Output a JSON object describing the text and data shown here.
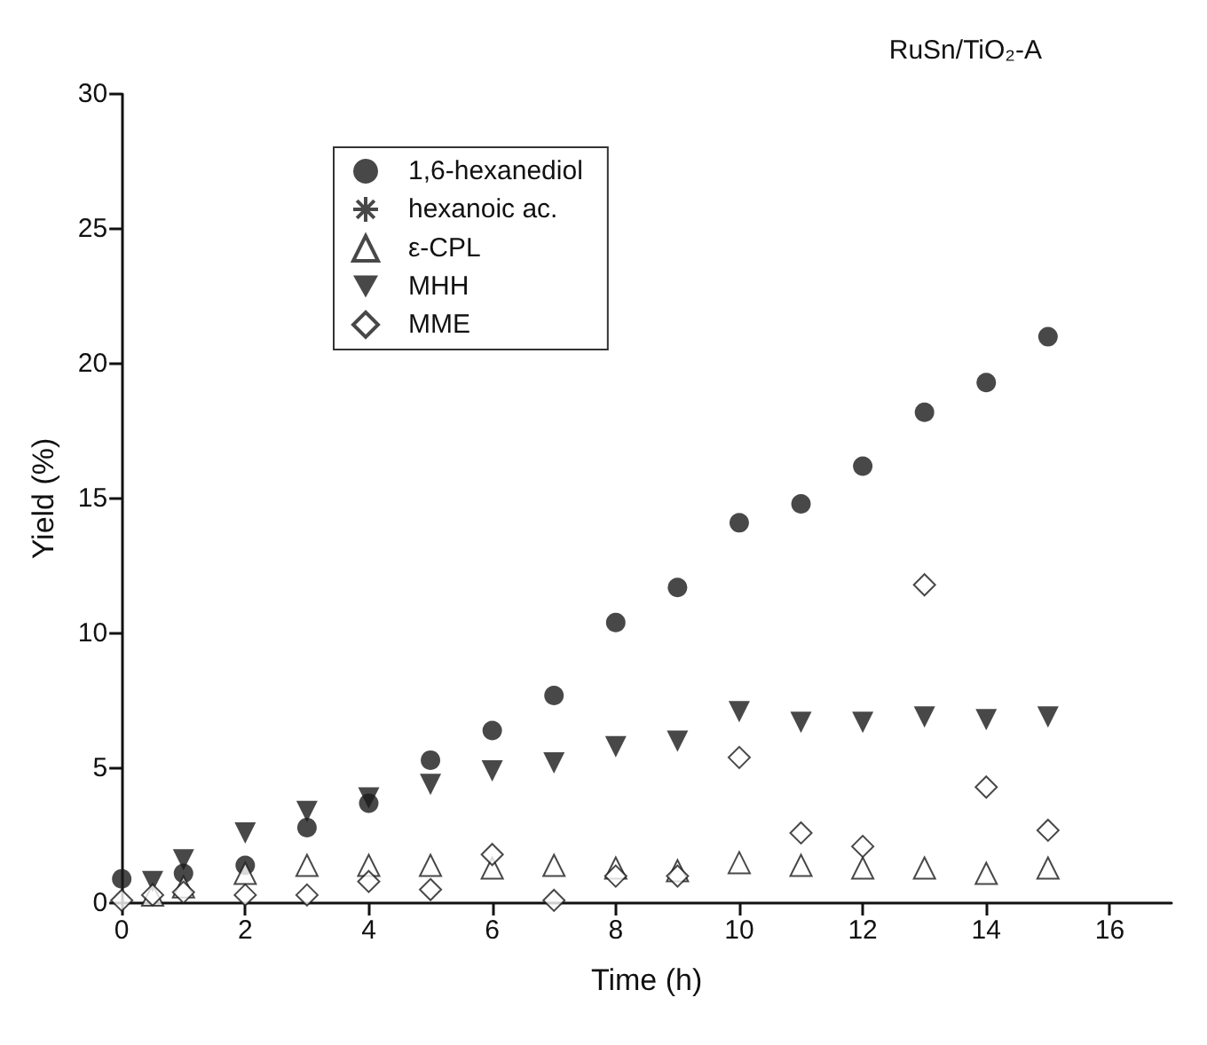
{
  "chart_data": {
    "type": "scatter",
    "title": "RuSn/TiO₂-A",
    "xlabel": "Time (h)",
    "ylabel": "Yield (%)",
    "x": [
      0,
      0.5,
      1,
      2,
      3,
      4,
      5,
      6,
      7,
      8,
      9,
      10,
      11,
      12,
      13,
      14,
      15
    ],
    "xlim": [
      0,
      17
    ],
    "xticks": [
      0,
      2,
      4,
      6,
      8,
      10,
      12,
      14,
      16
    ],
    "ylim": [
      0,
      30
    ],
    "yticks": [
      0,
      5,
      10,
      15,
      20,
      25,
      30
    ],
    "grid": false,
    "legend": "top left",
    "series": [
      {
        "name": "1,6-hexanediol",
        "color": "#1a1a1a",
        "marker": "circle",
        "values": [
          0.9,
          null,
          1.1,
          1.4,
          2.8,
          3.7,
          5.3,
          6.4,
          7.7,
          10.4,
          11.7,
          14.1,
          14.8,
          16.2,
          18.2,
          19.3,
          21.0
        ]
      },
      {
        "name": "hexanoic ac.",
        "color": "#1a1a1a",
        "marker": "cross",
        "values": [
          null,
          null,
          null,
          null,
          null,
          null,
          null,
          null,
          null,
          null,
          null,
          null,
          null,
          null,
          null,
          null,
          null
        ]
      },
      {
        "name": "ε-CPL",
        "color": "#1a1a1a",
        "marker": "triangle",
        "values": [
          null,
          0.3,
          0.6,
          1.1,
          1.4,
          1.4,
          1.4,
          1.3,
          1.4,
          1.3,
          1.2,
          1.5,
          1.4,
          1.3,
          1.3,
          1.1,
          1.3
        ]
      },
      {
        "name": "MHH",
        "color": "#1a1a1a",
        "marker": "triangle-down",
        "values": [
          null,
          0.8,
          1.6,
          2.6,
          3.4,
          3.9,
          4.4,
          4.9,
          5.2,
          5.8,
          6.0,
          7.1,
          6.7,
          6.7,
          6.9,
          6.8,
          6.9
        ]
      },
      {
        "name": "MME",
        "color": "#1a1a1a",
        "marker": "diamond",
        "values": [
          0.1,
          0.3,
          0.4,
          0.3,
          0.3,
          0.8,
          0.5,
          1.8,
          0.1,
          1.0,
          1.0,
          5.4,
          2.6,
          2.1,
          11.8,
          4.3,
          2.7
        ]
      }
    ]
  }
}
